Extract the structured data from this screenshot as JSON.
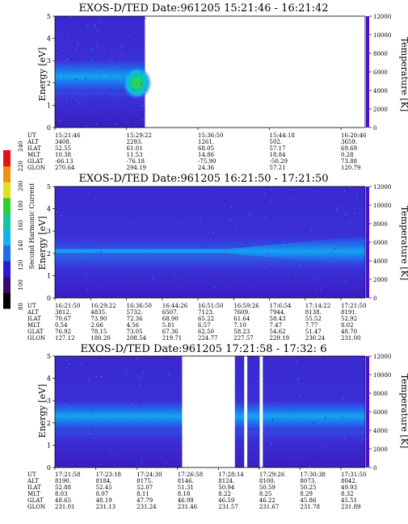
{
  "chart_data": [
    {
      "type": "heatmap",
      "title": "EXOS-D/TED   Date:961205  15:21:46 - 16:21:42",
      "ylabel": "Energy [eV]",
      "y2label": "Temperature [K]",
      "ylim": [
        0,
        5
      ],
      "y2lim": [
        0,
        12000
      ],
      "yticks": [
        "0",
        "1",
        "2",
        "3",
        "4",
        "5"
      ],
      "y2ticks": [
        "0",
        "2000",
        "4000",
        "6000",
        "8000",
        "10000",
        "12000"
      ],
      "data_coverage": [
        0,
        0.29
      ],
      "band": {
        "center_eV": 2.3,
        "width_eV": 1.4,
        "peak_eV": 2.0,
        "peak_at": 0.27
      },
      "ephemeris": {
        "row_labels": [
          "UT",
          "ALT",
          "ILAT",
          "MLT",
          "GLAT",
          "GLON"
        ],
        "columns": [
          {
            "UT": "15:21:46",
            "ALT": "3408.",
            "ILAT": "52.55",
            "MLT": "10.38",
            "GLAT": "-66.13",
            "GLON": "270.64"
          },
          {
            "UT": "15:29:22",
            "ALT": "2293.",
            "ILAT": "61.01",
            "MLT": "11.53",
            "GLAT": "-76.18",
            "GLON": "294.19"
          },
          {
            "UT": "15:36:50",
            "ALT": "1261.",
            "ILAT": "68.05",
            "MLT": "14.86",
            "GLAT": "-75.90",
            "GLON": "24.36"
          },
          {
            "UT": "15:44:18",
            "ALT": "502.",
            "ILAT": "57.17",
            "MLT": "18.84",
            "GLAT": "-50.29",
            "GLON": "57.21"
          },
          {
            "UT": "16:20:46",
            "ALT": "3659.",
            "ILAT": "69.69",
            "MLT": "0.28",
            "GLAT": "73.88",
            "GLON": "120.79"
          }
        ]
      }
    },
    {
      "type": "heatmap",
      "title": "EXOS-D/TED   Date:961205  16:21:50 - 17:21:50",
      "ylabel": "Energy [eV]",
      "y2label": "Temperature [K]",
      "ylim": [
        0,
        5
      ],
      "y2lim": [
        0,
        12000
      ],
      "yticks": [
        "0",
        "1",
        "2",
        "3",
        "4",
        "5"
      ],
      "y2ticks": [
        "0",
        "2000",
        "4000",
        "6000",
        "8000",
        "10000",
        "12000"
      ],
      "colorbar": {
        "label": "Second Harmonic Current",
        "ticks": [
          "80",
          "100",
          "120",
          "140",
          "160",
          "180",
          "200",
          "220",
          "240"
        ],
        "colors": [
          "#000000",
          "#3a0a6a",
          "#2a1ad8",
          "#1e6cf0",
          "#10b4f0",
          "#10c8a0",
          "#30d030",
          "#e0e020",
          "#f09010",
          "#e81010"
        ]
      },
      "ephemeris": {
        "row_labels": [
          "UT",
          "ALT",
          "ILAT",
          "MLT",
          "GLAT",
          "GLON"
        ],
        "columns": [
          {
            "UT": "16:21:50",
            "ALT": "3812.",
            "ILAT": "70.67",
            "MLT": "0.54",
            "GLAT": "76.92",
            "GLON": "127.12"
          },
          {
            "UT": "16:29:22",
            "ALT": "4835.",
            "ILAT": "73.90",
            "MLT": "2.66",
            "GLAT": "78.15",
            "GLON": "180.20"
          },
          {
            "UT": "16:36:50",
            "ALT": "5732.",
            "ILAT": "72.36",
            "MLT": "4.56",
            "GLAT": "73.05",
            "GLON": "208.54"
          },
          {
            "UT": "16:44:26",
            "ALT": "6507.",
            "ILAT": "68.90",
            "MLT": "5.81",
            "GLAT": "67.36",
            "GLON": "219.71"
          },
          {
            "UT": "16:51:50",
            "ALT": "7123.",
            "ILAT": "65.22",
            "MLT": "6.57",
            "GLAT": "62.50",
            "GLON": "224.77"
          },
          {
            "UT": "16:59:26",
            "ALT": "7609.",
            "ILAT": "61.64",
            "MLT": "7.10",
            "GLAT": "58.23",
            "GLON": "227.57"
          },
          {
            "UT": "17:6:54",
            "ALT": "7944.",
            "ILAT": "58.43",
            "MLT": "7.47",
            "GLAT": "54.62",
            "GLON": "229.19"
          },
          {
            "UT": "17:14:22",
            "ALT": "8138.",
            "ILAT": "55.52",
            "MLT": "7.77",
            "GLAT": "51.47",
            "GLON": "230.24"
          },
          {
            "UT": "17:21:50",
            "ALT": "8191.",
            "ILAT": "52.92",
            "MLT": "8.02",
            "GLAT": "48.70",
            "GLON": "231.00"
          }
        ]
      }
    },
    {
      "type": "heatmap",
      "title": "EXOS-D/TED   Date:961205  17:21:58 - 17:32: 6",
      "ylabel": "Energy [eV]",
      "y2label": "Temperature [K]",
      "ylim": [
        0,
        5
      ],
      "y2lim": [
        0,
        12000
      ],
      "yticks": [
        "0",
        "1",
        "2",
        "3",
        "4",
        "5"
      ],
      "y2ticks": [
        "0",
        "2000",
        "4000",
        "6000",
        "8000",
        "10000",
        "12000"
      ],
      "band": {
        "center_eV": 2.3,
        "width_eV": 1.3
      },
      "gaps": [
        [
          0.41,
          0.58
        ],
        [
          0.61,
          0.62
        ],
        [
          0.66,
          0.67
        ]
      ],
      "ephemeris": {
        "row_labels": [
          "UT",
          "ALT",
          "ILAT",
          "MLT",
          "GLAT",
          "GLON"
        ],
        "columns": [
          {
            "UT": "17:21:58",
            "ALT": "8190.",
            "ILAT": "52.88",
            "MLT": "8.03",
            "GLAT": "48.65",
            "GLON": "231.01"
          },
          {
            "UT": "17:23:18",
            "ALT": "8184.",
            "ILAT": "52.45",
            "MLT": "8.07",
            "GLAT": "48.19",
            "GLON": "231.13"
          },
          {
            "UT": "17:24:30",
            "ALT": "8175.",
            "ILAT": "52.07",
            "MLT": "8.11",
            "GLAT": "47.79",
            "GLON": "231.24"
          },
          {
            "UT": "17:26:58",
            "ALT": "8146.",
            "ILAT": "51.31",
            "MLT": "8.18",
            "GLAT": "46.99",
            "GLON": "231.46"
          },
          {
            "UT": "17:28:14",
            "ALT": "8124.",
            "ILAT": "50.94",
            "MLT": "8.22",
            "GLAT": "46.59",
            "GLON": "231.57"
          },
          {
            "UT": "17:29:26",
            "ALT": "8100.",
            "ILAT": "50.59",
            "MLT": "8.25",
            "GLAT": "46.22",
            "GLON": "231.67"
          },
          {
            "UT": "17:30:38",
            "ALT": "8073.",
            "ILAT": "50.25",
            "MLT": "8.29",
            "GLAT": "45.86",
            "GLON": "231.78"
          },
          {
            "UT": "17:31:50",
            "ALT": "8042.",
            "ILAT": "49.93",
            "MLT": "8.32",
            "GLAT": "45.51",
            "GLON": "231.89"
          }
        ]
      }
    }
  ]
}
